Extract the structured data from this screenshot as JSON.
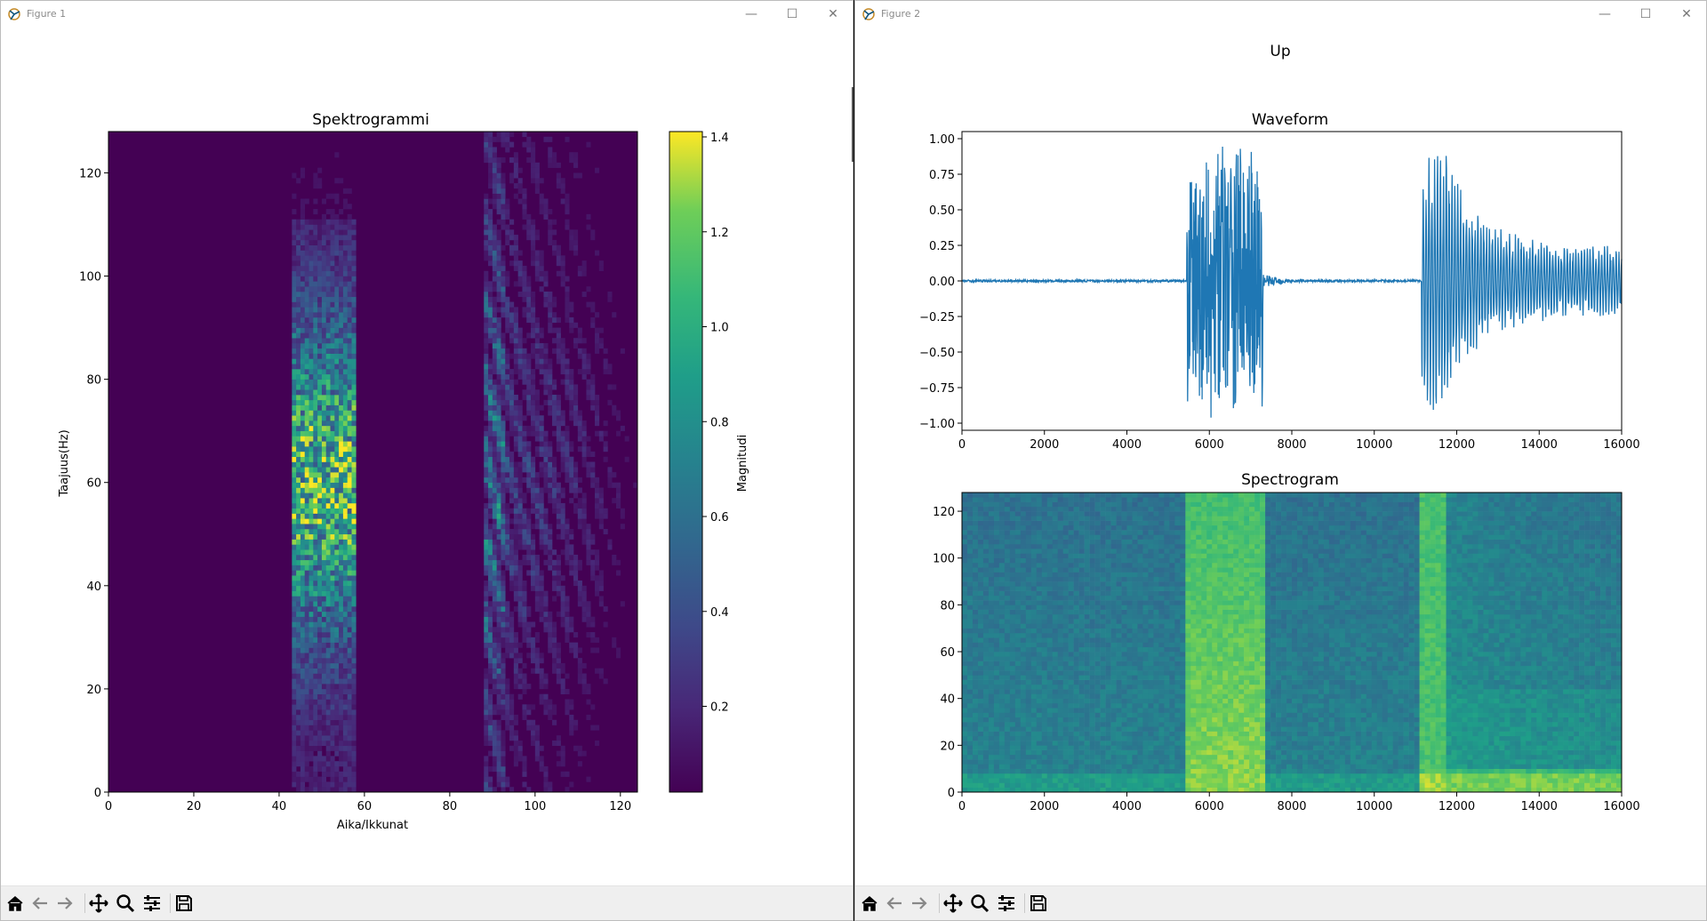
{
  "windows": [
    {
      "title": "Figure 1",
      "controls": {
        "minimize": "—",
        "maximize": "☐",
        "close": "✕"
      }
    },
    {
      "title": "Figure 2",
      "controls": {
        "minimize": "—",
        "maximize": "☐",
        "close": "✕"
      }
    }
  ],
  "toolbar": {
    "icons": [
      "home-icon",
      "back-arrow-icon",
      "forward-arrow-icon",
      "pan-icon",
      "zoom-icon",
      "configure-subplots-icon",
      "save-icon"
    ]
  },
  "figure1": {
    "title": "Spektrogrammi",
    "xlabel": "Aika/Ikkunat",
    "ylabel": "Taajuus(Hz)",
    "xticks": [
      "0",
      "20",
      "40",
      "60",
      "80",
      "100",
      "120"
    ],
    "yticks": [
      "0",
      "20",
      "40",
      "60",
      "80",
      "100",
      "120"
    ],
    "colorbar_label": "Magnitudi",
    "colorbar_ticks": [
      "0.2",
      "0.4",
      "0.6",
      "0.8",
      "1.0",
      "1.2",
      "1.4"
    ]
  },
  "figure2": {
    "suptitle": "Up",
    "waveform": {
      "title": "Waveform",
      "xticks": [
        "0",
        "2000",
        "4000",
        "6000",
        "8000",
        "10000",
        "12000",
        "14000",
        "16000"
      ],
      "yticks": [
        "1.00",
        "0.75",
        "0.50",
        "0.25",
        "0.00",
        "−0.25",
        "−0.50",
        "−0.75",
        "−1.00"
      ]
    },
    "spectrogram": {
      "title": "Spectrogram",
      "xticks": [
        "0",
        "2000",
        "4000",
        "6000",
        "8000",
        "10000",
        "12000",
        "14000",
        "16000"
      ],
      "yticks": [
        "120",
        "100",
        "80",
        "60",
        "40",
        "20",
        "0"
      ]
    }
  },
  "colors": {
    "viridis_low": "#440154",
    "viridis_mid": "#21918c",
    "viridis_high": "#fde725",
    "line": "#1f77b4"
  },
  "chart_data": [
    {
      "type": "heatmap",
      "title": "Spektrogrammi",
      "xlabel": "Aika/Ikkunat",
      "ylabel": "Taajuus(Hz)",
      "xlim": [
        0,
        124
      ],
      "ylim": [
        0,
        128
      ],
      "colorbar": {
        "label": "Magnitudi",
        "range": [
          0.0,
          1.4
        ]
      },
      "active_bands": [
        {
          "x_range": [
            43,
            57
          ],
          "peak_magnitude": 1.4
        },
        {
          "x_range": [
            88,
            124
          ],
          "peak_magnitude": 0.9
        }
      ]
    },
    {
      "type": "line",
      "title": "Waveform",
      "xlim": [
        0,
        16000
      ],
      "ylim": [
        -1.05,
        1.05
      ],
      "bursts": [
        {
          "x_range": [
            5450,
            7300
          ],
          "amplitude": 1.0
        },
        {
          "x_range": [
            11150,
            16000
          ],
          "amplitude": 0.9
        }
      ]
    },
    {
      "type": "heatmap",
      "title": "Spectrogram",
      "xlim": [
        0,
        16000
      ],
      "ylim": [
        0,
        128
      ],
      "bright_regions": [
        {
          "x_range": [
            5450,
            7300
          ]
        },
        {
          "x_range": [
            11150,
            11700
          ]
        }
      ]
    }
  ]
}
